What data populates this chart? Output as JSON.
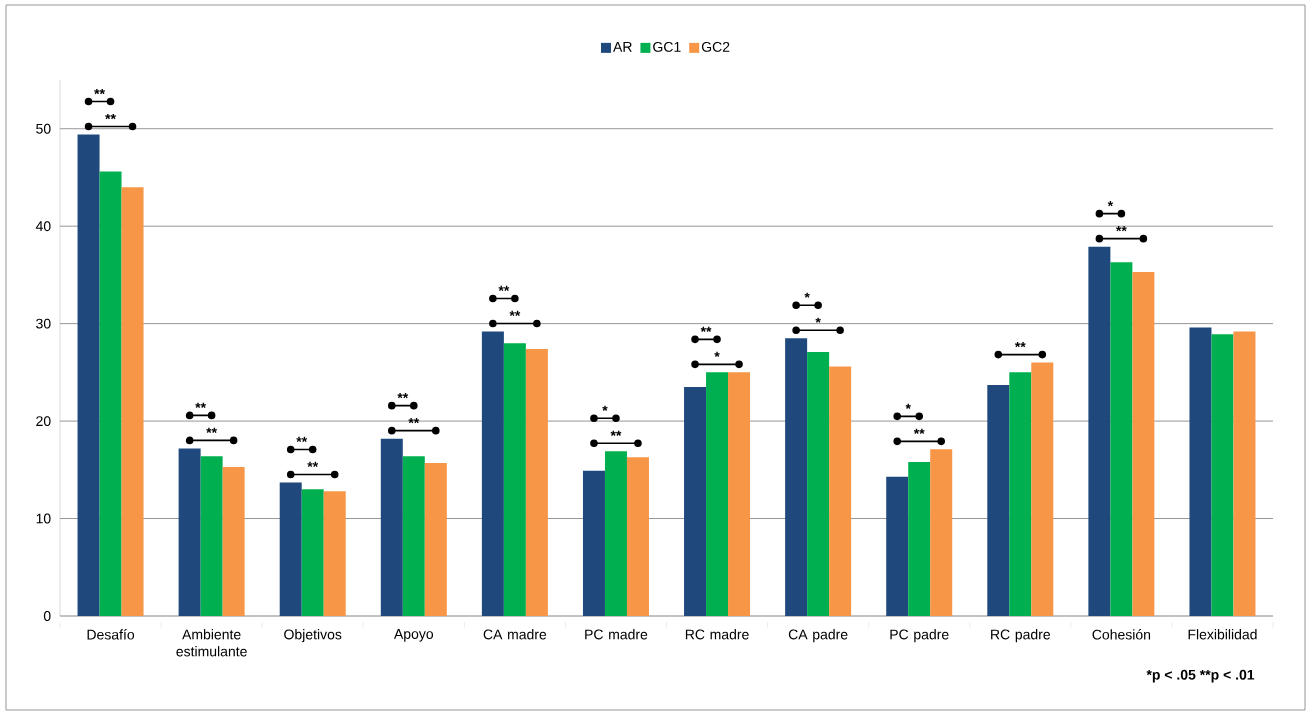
{
  "chart_data": {
    "type": "bar",
    "categories": [
      "Desafío",
      "Ambiente estimulante",
      "Objetivos",
      "Apoyo",
      "CA madre",
      "PC madre",
      "RC madre",
      "CA padre",
      "PC padre",
      "RC padre",
      "Cohesión",
      "Flexibilidad"
    ],
    "series": [
      {
        "name": "AR",
        "color": "#1f497d",
        "values": [
          49.4,
          17.2,
          13.7,
          18.2,
          29.2,
          14.9,
          23.5,
          28.5,
          14.3,
          23.7,
          37.9,
          29.6
        ]
      },
      {
        "name": "GC1",
        "color": "#00b050",
        "values": [
          45.6,
          16.4,
          13.0,
          16.4,
          28.0,
          16.9,
          25.0,
          27.1,
          15.8,
          25.0,
          36.3,
          28.9
        ]
      },
      {
        "name": "GC2",
        "color": "#f79646",
        "values": [
          44.0,
          15.3,
          12.8,
          15.7,
          27.4,
          16.3,
          25.0,
          25.6,
          17.1,
          26.0,
          35.3,
          29.2
        ]
      }
    ],
    "ylim": [
      0,
      55
    ],
    "yticks": [
      0,
      10,
      20,
      30,
      40,
      50
    ],
    "grid": "y",
    "legend": "top",
    "annotations": [
      "**",
      "**",
      "**",
      "**",
      "**",
      "**",
      "**",
      "**",
      "**",
      "**",
      "*",
      "**",
      "**",
      "*",
      "*",
      "*",
      "*",
      "**",
      "**",
      "*",
      "**",
      "*p < .05 **p < .01"
    ]
  }
}
